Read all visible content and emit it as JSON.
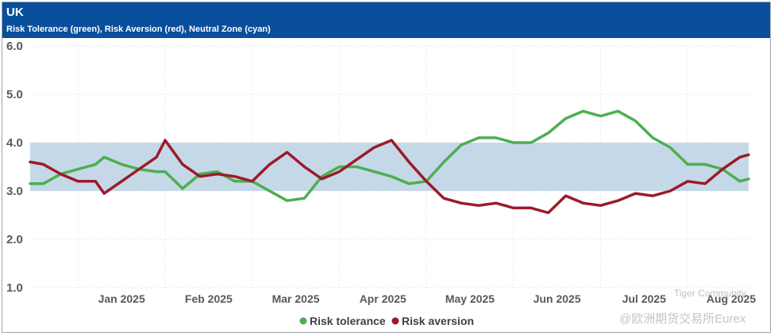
{
  "header": {
    "title": "UK",
    "subtitle": "Risk Tolerance (green), Risk Aversion (red), Neutral Zone (cyan)"
  },
  "colors": {
    "header_bg": "#0a4f9c",
    "green": "#4caf50",
    "red": "#9b1b2a",
    "band": "#c5d8e8"
  },
  "watermark": {
    "line1": "Tiger Community",
    "line2": "@欧洲期货交易所Eurex"
  },
  "chart_data": {
    "type": "line",
    "title": "UK",
    "subtitle": "Risk Tolerance (green), Risk Aversion (red), Neutral Zone (cyan)",
    "xlabel": "",
    "ylabel": "",
    "ylim": [
      1.0,
      6.0
    ],
    "yticks": [
      "1.0",
      "2.0",
      "3.0",
      "4.0",
      "5.0",
      "6.0"
    ],
    "xlim": [
      -0.55,
      7.7
    ],
    "month_labels": [
      "Jan 2025",
      "Feb 2025",
      "Mar 2025",
      "Apr 2025",
      "May 2025",
      "Jun 2025",
      "Jul 2025",
      "Aug 2025"
    ],
    "grid": true,
    "legend_position": "bottom-center",
    "neutral_zone": [
      3.0,
      4.0
    ],
    "x": [
      -0.55,
      -0.4,
      -0.2,
      0.0,
      0.2,
      0.3,
      0.5,
      0.7,
      0.9,
      1.0,
      1.2,
      1.4,
      1.6,
      1.8,
      2.0,
      2.2,
      2.4,
      2.6,
      2.8,
      3.0,
      3.2,
      3.4,
      3.6,
      3.8,
      4.0,
      4.2,
      4.4,
      4.6,
      4.8,
      5.0,
      5.2,
      5.4,
      5.6,
      5.8,
      6.0,
      6.2,
      6.4,
      6.6,
      6.8,
      7.0,
      7.2,
      7.4,
      7.6,
      7.7
    ],
    "series": [
      {
        "name": "Risk tolerance",
        "color": "#4caf50",
        "values": [
          3.15,
          3.15,
          3.35,
          3.45,
          3.55,
          3.7,
          3.55,
          3.45,
          3.4,
          3.4,
          3.05,
          3.35,
          3.4,
          3.2,
          3.2,
          3.0,
          2.8,
          2.85,
          3.3,
          3.5,
          3.5,
          3.4,
          3.3,
          3.15,
          3.2,
          3.6,
          3.95,
          4.1,
          4.1,
          4.0,
          4.0,
          4.2,
          4.5,
          4.65,
          4.55,
          4.65,
          4.45,
          4.1,
          3.9,
          3.55,
          3.55,
          3.45,
          3.2,
          3.25
        ]
      },
      {
        "name": "Risk aversion",
        "color": "#9b1b2a",
        "values": [
          3.6,
          3.55,
          3.35,
          3.2,
          3.2,
          2.95,
          3.2,
          3.45,
          3.7,
          4.05,
          3.55,
          3.3,
          3.35,
          3.3,
          3.2,
          3.55,
          3.8,
          3.5,
          3.25,
          3.4,
          3.65,
          3.9,
          4.05,
          3.6,
          3.2,
          2.85,
          2.75,
          2.7,
          2.75,
          2.65,
          2.65,
          2.55,
          2.9,
          2.75,
          2.7,
          2.8,
          2.95,
          2.9,
          3.0,
          3.2,
          3.15,
          3.45,
          3.7,
          3.75
        ]
      }
    ]
  }
}
